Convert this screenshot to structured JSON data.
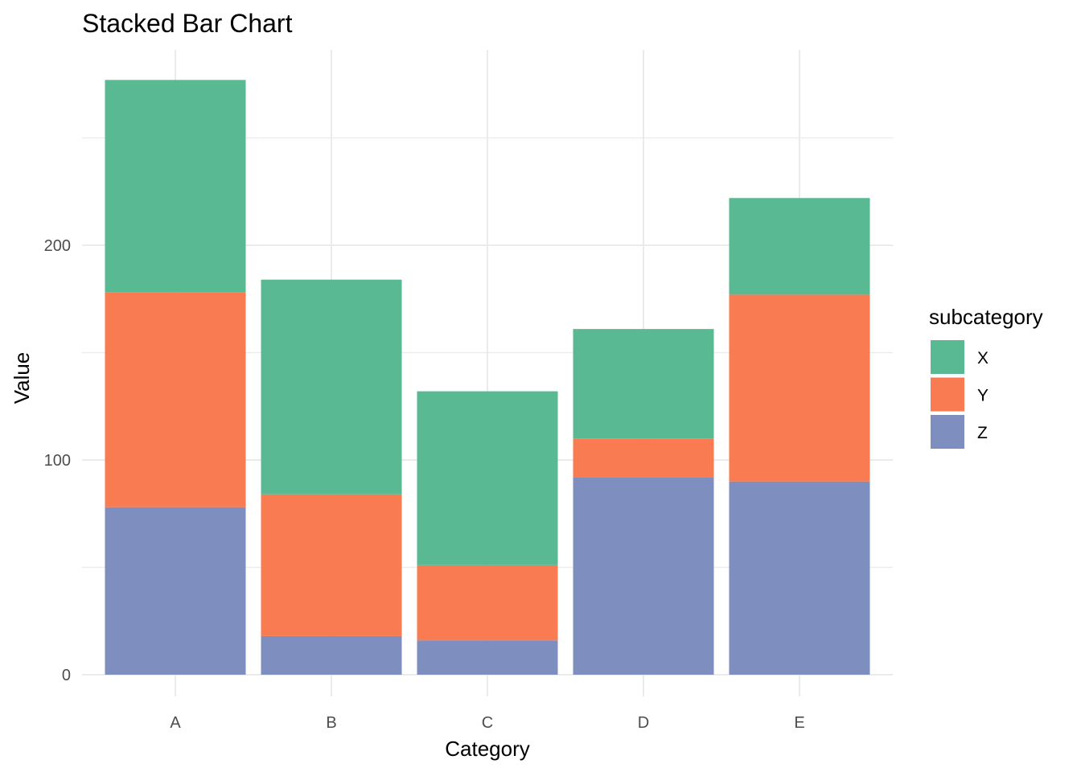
{
  "chart_data": {
    "type": "bar",
    "stacked": true,
    "title": "Stacked Bar Chart",
    "xlabel": "Category",
    "ylabel": "Value",
    "categories": [
      "A",
      "B",
      "C",
      "D",
      "E"
    ],
    "series": [
      {
        "name": "Z",
        "values": [
          78,
          18,
          16,
          92,
          90
        ],
        "color": "#7e8ebe"
      },
      {
        "name": "Y",
        "values": [
          100,
          66,
          35,
          18,
          87
        ],
        "color": "#f97b52"
      },
      {
        "name": "X",
        "values": [
          99,
          100,
          81,
          51,
          45
        ],
        "color": "#58b993"
      }
    ],
    "ylim": [
      0,
      290
    ],
    "yticks": [
      0,
      100,
      200
    ],
    "yticklabels": [
      "0",
      "100",
      "200"
    ],
    "grid": true,
    "legend": {
      "title": "subcategory",
      "placement": "right",
      "entries": [
        "X",
        "Y",
        "Z"
      ]
    }
  }
}
